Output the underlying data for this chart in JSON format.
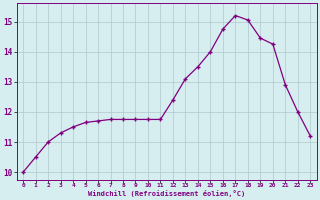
{
  "x": [
    0,
    1,
    2,
    3,
    4,
    5,
    6,
    7,
    8,
    9,
    10,
    11,
    12,
    13,
    14,
    15,
    16,
    17,
    18,
    19,
    20,
    21,
    22,
    23
  ],
  "y": [
    10.0,
    10.5,
    11.0,
    11.3,
    11.5,
    11.65,
    11.7,
    11.75,
    11.75,
    11.75,
    11.75,
    11.75,
    12.4,
    13.1,
    13.5,
    14.0,
    14.75,
    15.2,
    15.05,
    14.45,
    14.25,
    12.9,
    12.0,
    11.2
  ],
  "xlabel": "Windchill (Refroidissement éolien,°C)",
  "line_color": "#800080",
  "marker_color": "#800080",
  "bg_color": "#d6eef0",
  "grid_color": "#b0c8cc",
  "tick_label_color": "#800080",
  "axis_label_color": "#800080",
  "xlim": [
    -0.5,
    23.5
  ],
  "ylim": [
    9.75,
    15.6
  ],
  "yticks": [
    10,
    11,
    12,
    13,
    14,
    15
  ],
  "xticks": [
    0,
    1,
    2,
    3,
    4,
    5,
    6,
    7,
    8,
    9,
    10,
    11,
    12,
    13,
    14,
    15,
    16,
    17,
    18,
    19,
    20,
    21,
    22,
    23
  ],
  "xtick_labels": [
    "0",
    "1",
    "2",
    "3",
    "4",
    "5",
    "6",
    "7",
    "8",
    "9",
    "10",
    "11",
    "12",
    "13",
    "14",
    "15",
    "16",
    "17",
    "18",
    "19",
    "20",
    "21",
    "22",
    "23"
  ]
}
